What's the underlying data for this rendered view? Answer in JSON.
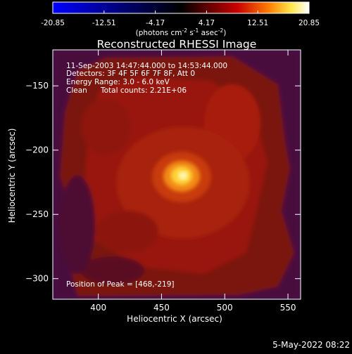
{
  "colorbar": {
    "tick_labels": [
      "-20.85",
      "-12.51",
      "-4.17",
      "4.17",
      "12.51",
      "20.85"
    ],
    "tick_values": [
      -20.85,
      -12.51,
      -4.17,
      4.17,
      12.51,
      20.85
    ],
    "range": [
      -20.85,
      20.85
    ],
    "unit_base": "(photons cm",
    "unit_exp1": "-2",
    "unit_mid1": " s",
    "unit_exp2": "-1",
    "unit_mid2": " asec",
    "unit_exp3": "-2",
    "unit_end": ")",
    "stops": [
      "#0000ff",
      "#000000",
      "#6e0000",
      "#c80000",
      "#ff7a00",
      "#ffe64a",
      "#ffffff"
    ]
  },
  "chart_data": {
    "type": "heatmap",
    "title": "Reconstructed RHESSI Image",
    "xlabel": "Heliocentric X (arcsec)",
    "ylabel": "Heliocentric Y (arcsec)",
    "xlim": [
      364,
      560
    ],
    "ylim": [
      -316,
      -122
    ],
    "x_ticks": [
      400,
      450,
      500,
      550
    ],
    "y_ticks": [
      -150,
      -200,
      -250,
      -300
    ],
    "grid": false,
    "peak": {
      "x": 468,
      "y": -219
    },
    "info_lines": [
      "11-Sep-2003 14:47:44.000 to 14:53:44.000",
      "Detectors: 3F 4F 5F 6F 7F 8F, Att 0",
      "Energy Range: 3.0 - 6.0 keV"
    ],
    "clean_label": "Clean",
    "total_counts": "Total counts: 2.21E+06",
    "peak_label": "Position of Peak = [468,-219]"
  },
  "footer_date": "5-May-2022 08:22"
}
